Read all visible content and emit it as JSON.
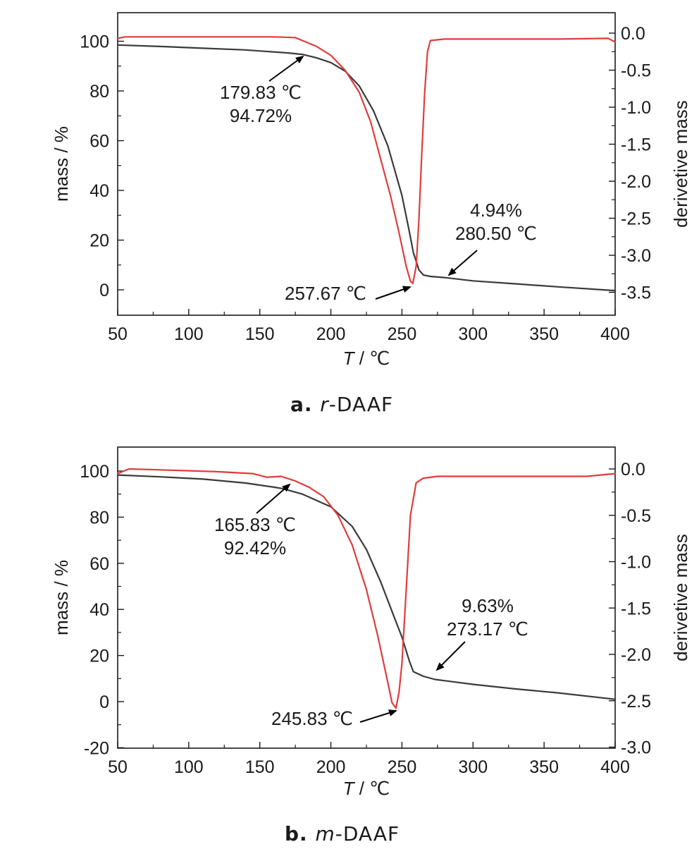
{
  "colors": {
    "mass": "#3a3a3a",
    "derivative": "#e03c3c",
    "axis": "#1a1a1a",
    "annotation": "#000000"
  },
  "chart_data": [
    {
      "type": "line",
      "caption_letter": "a.",
      "caption_title_italic": "r",
      "caption_title_rest": "-DAAF",
      "xlabel_italic": "T",
      "xlabel_rest": " / ℃",
      "ylabel": "mass / %",
      "y2label": "derivetive mass",
      "xlim": [
        50,
        400
      ],
      "ylim": [
        -10,
        110
      ],
      "y2lim": [
        -3.5,
        0
      ],
      "xticks": [
        50,
        100,
        150,
        200,
        250,
        300,
        350,
        400
      ],
      "yticks": [
        0,
        20,
        40,
        60,
        80,
        100
      ],
      "y2ticks": [
        "0.0",
        "-0.5",
        "-1.0",
        "-1.5",
        "-2.0",
        "-2.5",
        "-3.0",
        "-3.5"
      ],
      "series": [
        {
          "id": "mass",
          "axis": "left",
          "x": [
            50,
            80,
            110,
            140,
            170,
            180,
            190,
            200,
            210,
            220,
            230,
            240,
            250,
            255,
            258,
            262,
            265,
            270,
            280,
            300,
            330,
            360,
            400
          ],
          "values": [
            98.5,
            97.9,
            97.2,
            96.5,
            95.3,
            94.72,
            93.3,
            91.4,
            88.0,
            82.0,
            72.0,
            58.0,
            38.0,
            24.0,
            15.0,
            8.0,
            6.0,
            5.4,
            4.94,
            3.6,
            2.4,
            1.2,
            -0.3
          ]
        },
        {
          "id": "derivative",
          "axis": "right",
          "x": [
            50,
            55,
            80,
            120,
            160,
            175,
            180,
            190,
            200,
            210,
            220,
            228,
            235,
            242,
            248,
            253,
            256,
            257.67,
            260,
            262,
            264,
            266,
            268,
            270,
            280,
            320,
            360,
            395,
            400
          ],
          "values": [
            -0.07,
            -0.05,
            -0.05,
            -0.05,
            -0.05,
            -0.06,
            -0.1,
            -0.18,
            -0.3,
            -0.5,
            -0.8,
            -1.2,
            -1.7,
            -2.2,
            -2.7,
            -3.15,
            -3.35,
            -3.38,
            -3.15,
            -2.5,
            -1.6,
            -0.8,
            -0.25,
            -0.1,
            -0.08,
            -0.08,
            -0.08,
            -0.07,
            -0.12
          ]
        }
      ],
      "annotations": [
        {
          "lines": [
            "179.83 ℃",
            "94.72%"
          ]
        },
        {
          "lines": [
            "4.94%",
            "280.50 ℃"
          ]
        },
        {
          "lines": [
            "257.67 ℃"
          ]
        }
      ]
    },
    {
      "type": "line",
      "caption_letter": "b.",
      "caption_title_italic": "m",
      "caption_title_rest": "-DAAF",
      "xlabel_italic": "T",
      "xlabel_rest": " / ℃",
      "ylabel": "mass / %",
      "y2label": "derivetive mass",
      "xlim": [
        50,
        400
      ],
      "ylim": [
        -20,
        110
      ],
      "y2lim": [
        -3.0,
        0.2
      ],
      "xticks": [
        50,
        100,
        150,
        200,
        250,
        300,
        350,
        400
      ],
      "yticks": [
        -20,
        0,
        20,
        40,
        60,
        80,
        100
      ],
      "y2ticks": [
        "0.0",
        "-0.5",
        "-1.0",
        "-1.5",
        "-2.0",
        "-2.5",
        "-3.0"
      ],
      "series": [
        {
          "id": "mass",
          "axis": "left",
          "x": [
            50,
            80,
            110,
            140,
            160,
            165.83,
            180,
            200,
            215,
            225,
            235,
            245,
            250,
            255,
            258,
            265,
            273.17,
            300,
            330,
            360,
            400
          ],
          "values": [
            98.3,
            97.5,
            96.5,
            94.8,
            93.0,
            92.42,
            90.0,
            84.5,
            76.0,
            66.0,
            52.0,
            36.0,
            28.0,
            18.0,
            13.0,
            11.0,
            9.63,
            7.5,
            5.5,
            3.8,
            1.0
          ]
        },
        {
          "id": "derivative",
          "axis": "right",
          "x": [
            50,
            58,
            80,
            120,
            145,
            155,
            165,
            175,
            185,
            195,
            205,
            215,
            225,
            233,
            240,
            243,
            245.83,
            248,
            250,
            253,
            256,
            260,
            265,
            275,
            300,
            340,
            380,
            400
          ],
          "values": [
            -0.05,
            0.0,
            -0.01,
            -0.03,
            -0.05,
            -0.09,
            -0.08,
            -0.13,
            -0.2,
            -0.3,
            -0.5,
            -0.82,
            -1.3,
            -1.8,
            -2.3,
            -2.52,
            -2.58,
            -2.4,
            -2.1,
            -1.3,
            -0.5,
            -0.15,
            -0.1,
            -0.08,
            -0.08,
            -0.08,
            -0.08,
            -0.05
          ]
        }
      ],
      "annotations": [
        {
          "lines": [
            "165.83 ℃",
            "92.42%"
          ]
        },
        {
          "lines": [
            "9.63%",
            "273.17 ℃"
          ]
        },
        {
          "lines": [
            "245.83 ℃"
          ]
        }
      ]
    }
  ]
}
